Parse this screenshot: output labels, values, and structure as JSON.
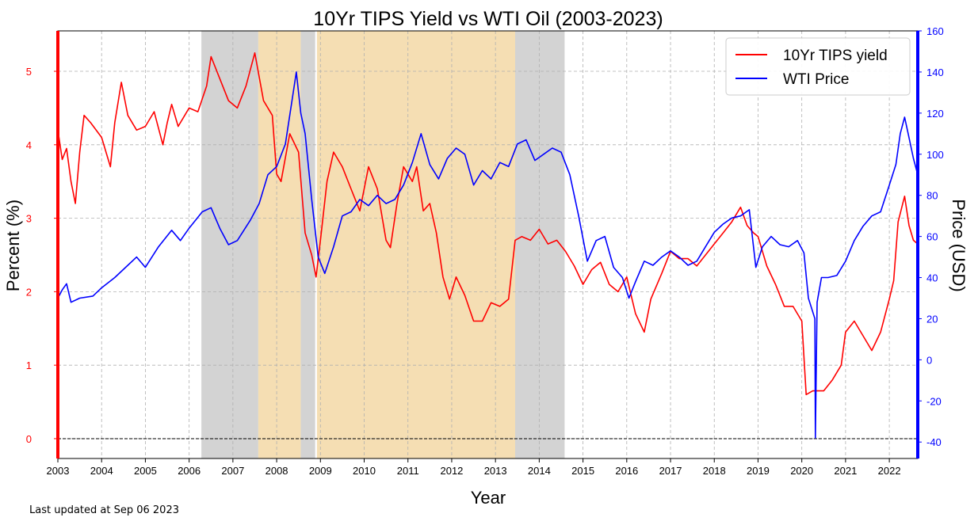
{
  "chart_data": {
    "type": "line",
    "title": "10Yr TIPS Yield vs WTI Oil (2003-2023)",
    "xlabel": "Year",
    "ylabel_left": "Percent (%)",
    "ylabel_right": "Price (USD)",
    "xlim": [
      2003.0,
      2022.65
    ],
    "ylim_left": [
      -0.27,
      5.55
    ],
    "ylim_right": [
      -48,
      160
    ],
    "x_ticks": [
      2003,
      2004,
      2005,
      2006,
      2007,
      2008,
      2009,
      2010,
      2011,
      2012,
      2013,
      2014,
      2015,
      2016,
      2017,
      2018,
      2019,
      2020,
      2021,
      2022
    ],
    "y_ticks_left": [
      0,
      1,
      2,
      3,
      4,
      5
    ],
    "y_ticks_right": [
      -40,
      -20,
      0,
      20,
      40,
      60,
      80,
      100,
      120,
      140,
      160
    ],
    "grid": true,
    "legend_position": "top-right",
    "shaded_regions": [
      {
        "start": 2006.28,
        "end": 2007.58,
        "color": "#d3d3d3"
      },
      {
        "start": 2007.58,
        "end": 2008.55,
        "color": "#f5deb3"
      },
      {
        "start": 2008.55,
        "end": 2008.88,
        "color": "#d3d3d3"
      },
      {
        "start": 2008.92,
        "end": 2013.45,
        "color": "#f5deb3"
      },
      {
        "start": 2013.45,
        "end": 2014.58,
        "color": "#d3d3d3"
      }
    ],
    "reference_lines": [
      {
        "axis": "left",
        "y": 0,
        "style": "dashed",
        "color": "#000000"
      }
    ],
    "series": [
      {
        "name": "10Yr TIPS yield",
        "axis": "left",
        "color": "#ff0000",
        "x": [
          2003.0,
          2003.1,
          2003.2,
          2003.3,
          2003.4,
          2003.5,
          2003.6,
          2003.75,
          2004.0,
          2004.2,
          2004.3,
          2004.45,
          2004.6,
          2004.8,
          2005.0,
          2005.2,
          2005.4,
          2005.5,
          2005.6,
          2005.75,
          2005.9,
          2006.0,
          2006.2,
          2006.4,
          2006.5,
          2006.7,
          2006.9,
          2007.1,
          2007.3,
          2007.5,
          2007.7,
          2007.9,
          2008.0,
          2008.1,
          2008.3,
          2008.5,
          2008.65,
          2008.8,
          2008.9,
          2009.0,
          2009.15,
          2009.3,
          2009.5,
          2009.7,
          2009.9,
          2010.1,
          2010.3,
          2010.5,
          2010.6,
          2010.75,
          2010.9,
          2011.1,
          2011.2,
          2011.35,
          2011.5,
          2011.65,
          2011.8,
          2011.95,
          2012.1,
          2012.3,
          2012.5,
          2012.7,
          2012.9,
          2013.1,
          2013.3,
          2013.45,
          2013.6,
          2013.8,
          2014.0,
          2014.2,
          2014.4,
          2014.6,
          2014.8,
          2015.0,
          2015.2,
          2015.4,
          2015.6,
          2015.8,
          2016.0,
          2016.2,
          2016.4,
          2016.55,
          2016.8,
          2017.0,
          2017.2,
          2017.4,
          2017.6,
          2017.8,
          2018.0,
          2018.2,
          2018.4,
          2018.6,
          2018.75,
          2018.9,
          2019.0,
          2019.2,
          2019.4,
          2019.6,
          2019.8,
          2020.0,
          2020.1,
          2020.25,
          2020.5,
          2020.7,
          2020.9,
          2021.0,
          2021.2,
          2021.4,
          2021.6,
          2021.8,
          2022.0,
          2022.1,
          2022.2,
          2022.35,
          2022.45,
          2022.55,
          2022.65
        ],
        "values": [
          4.2,
          3.8,
          3.95,
          3.5,
          3.2,
          3.9,
          4.4,
          4.3,
          4.1,
          3.7,
          4.3,
          4.85,
          4.4,
          4.2,
          4.25,
          4.45,
          4.0,
          4.3,
          4.55,
          4.25,
          4.4,
          4.5,
          4.45,
          4.8,
          5.2,
          4.9,
          4.6,
          4.5,
          4.8,
          5.25,
          4.6,
          4.4,
          3.6,
          3.5,
          4.15,
          3.9,
          2.8,
          2.5,
          2.2,
          2.7,
          3.5,
          3.9,
          3.7,
          3.4,
          3.1,
          3.7,
          3.4,
          2.7,
          2.6,
          3.2,
          3.7,
          3.5,
          3.7,
          3.1,
          3.2,
          2.8,
          2.2,
          1.9,
          2.2,
          1.95,
          1.6,
          1.6,
          1.85,
          1.8,
          1.9,
          2.7,
          2.75,
          2.7,
          2.85,
          2.65,
          2.7,
          2.55,
          2.35,
          2.1,
          2.3,
          2.4,
          2.1,
          2.0,
          2.2,
          1.7,
          1.45,
          1.9,
          2.25,
          2.55,
          2.45,
          2.45,
          2.35,
          2.5,
          2.65,
          2.8,
          2.95,
          3.15,
          2.9,
          2.8,
          2.75,
          2.35,
          2.1,
          1.8,
          1.8,
          1.6,
          0.6,
          0.65,
          0.65,
          0.8,
          1.0,
          1.45,
          1.6,
          1.4,
          1.2,
          1.45,
          1.9,
          2.15,
          2.95,
          3.3,
          2.9,
          2.7,
          2.65
        ]
      },
      {
        "name": "WTI Price",
        "axis": "right",
        "color": "#0000ff",
        "x": [
          2003.0,
          2003.1,
          2003.2,
          2003.3,
          2003.5,
          2003.8,
          2004.0,
          2004.3,
          2004.6,
          2004.8,
          2005.0,
          2005.3,
          2005.6,
          2005.8,
          2006.0,
          2006.3,
          2006.5,
          2006.7,
          2006.9,
          2007.1,
          2007.4,
          2007.6,
          2007.8,
          2008.0,
          2008.2,
          2008.35,
          2008.45,
          2008.55,
          2008.65,
          2008.8,
          2008.95,
          2009.1,
          2009.3,
          2009.5,
          2009.7,
          2009.9,
          2010.1,
          2010.3,
          2010.5,
          2010.7,
          2010.9,
          2011.1,
          2011.3,
          2011.5,
          2011.7,
          2011.9,
          2012.1,
          2012.3,
          2012.5,
          2012.7,
          2012.9,
          2013.1,
          2013.3,
          2013.5,
          2013.7,
          2013.9,
          2014.1,
          2014.3,
          2014.5,
          2014.7,
          2014.9,
          2015.1,
          2015.3,
          2015.5,
          2015.7,
          2015.9,
          2016.05,
          2016.2,
          2016.4,
          2016.6,
          2016.8,
          2017.0,
          2017.2,
          2017.4,
          2017.6,
          2017.8,
          2018.0,
          2018.2,
          2018.4,
          2018.6,
          2018.8,
          2018.95,
          2019.1,
          2019.3,
          2019.5,
          2019.7,
          2019.9,
          2020.05,
          2020.15,
          2020.3,
          2020.31,
          2020.35,
          2020.45,
          2020.6,
          2020.8,
          2021.0,
          2021.2,
          2021.4,
          2021.6,
          2021.8,
          2022.0,
          2022.15,
          2022.25,
          2022.35,
          2022.45,
          2022.55,
          2022.65
        ],
        "values": [
          30,
          34,
          37,
          28,
          30,
          31,
          35,
          40,
          46,
          50,
          45,
          55,
          63,
          58,
          64,
          72,
          74,
          64,
          56,
          58,
          68,
          76,
          90,
          94,
          105,
          126,
          140,
          120,
          110,
          78,
          50,
          42,
          55,
          70,
          72,
          78,
          75,
          80,
          76,
          78,
          85,
          96,
          110,
          95,
          88,
          98,
          103,
          100,
          85,
          92,
          88,
          96,
          94,
          105,
          107,
          97,
          100,
          103,
          101,
          90,
          70,
          48,
          58,
          60,
          45,
          40,
          30,
          38,
          48,
          46,
          50,
          53,
          50,
          46,
          48,
          55,
          62,
          66,
          69,
          70,
          73,
          45,
          55,
          60,
          56,
          55,
          58,
          52,
          30,
          20,
          -38,
          28,
          40,
          40,
          41,
          48,
          58,
          65,
          70,
          72,
          85,
          95,
          110,
          118,
          108,
          98,
          90
        ]
      }
    ]
  },
  "footnote": "Last updated at Sep 06 2023"
}
